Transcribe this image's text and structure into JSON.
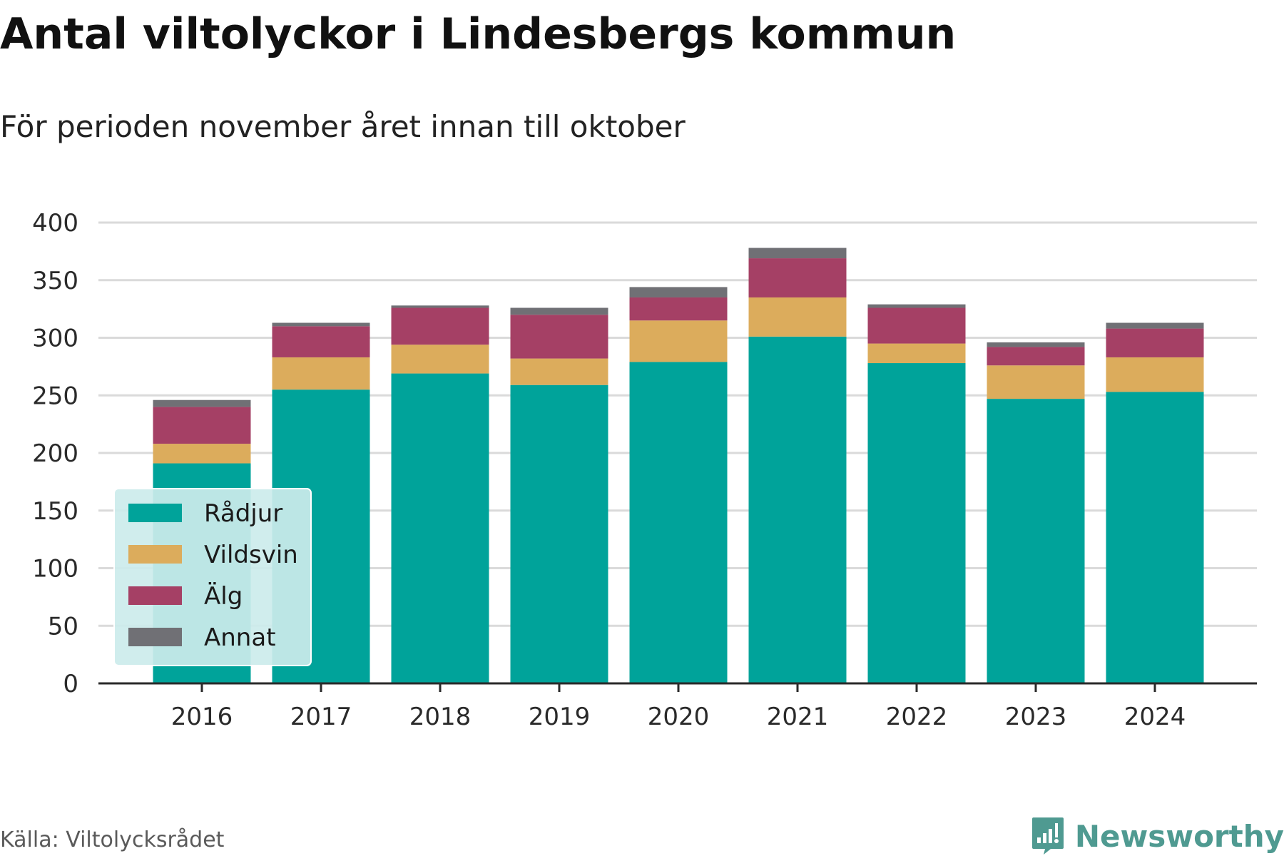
{
  "title": "Antal viltolyckor i Lindesbergs kommun",
  "subtitle": "För perioden november året innan till oktober",
  "source": "Källa: Viltolycksrådet",
  "brand": "Newsworthy",
  "chart_data": {
    "type": "bar",
    "stacked": true,
    "categories": [
      "2016",
      "2017",
      "2018",
      "2019",
      "2020",
      "2021",
      "2022",
      "2023",
      "2024"
    ],
    "series": [
      {
        "name": "Rådjur",
        "color": "#00a39a",
        "values": [
          191,
          255,
          269,
          259,
          279,
          301,
          278,
          247,
          253
        ]
      },
      {
        "name": "Vildsvin",
        "color": "#dcac5c",
        "values": [
          17,
          28,
          25,
          23,
          36,
          34,
          17,
          29,
          30
        ]
      },
      {
        "name": "Älg",
        "color": "#a54065",
        "values": [
          32,
          27,
          32,
          38,
          20,
          34,
          31,
          16,
          25
        ]
      },
      {
        "name": "Annat",
        "color": "#707075",
        "values": [
          6,
          3,
          2,
          6,
          9,
          9,
          3,
          4,
          5
        ]
      }
    ],
    "ylim": [
      0,
      400
    ],
    "yticks": [
      0,
      50,
      100,
      150,
      200,
      250,
      300,
      350,
      400
    ],
    "xlabel": "",
    "ylabel": "",
    "grid": true,
    "legend_position": "bottom-left"
  }
}
